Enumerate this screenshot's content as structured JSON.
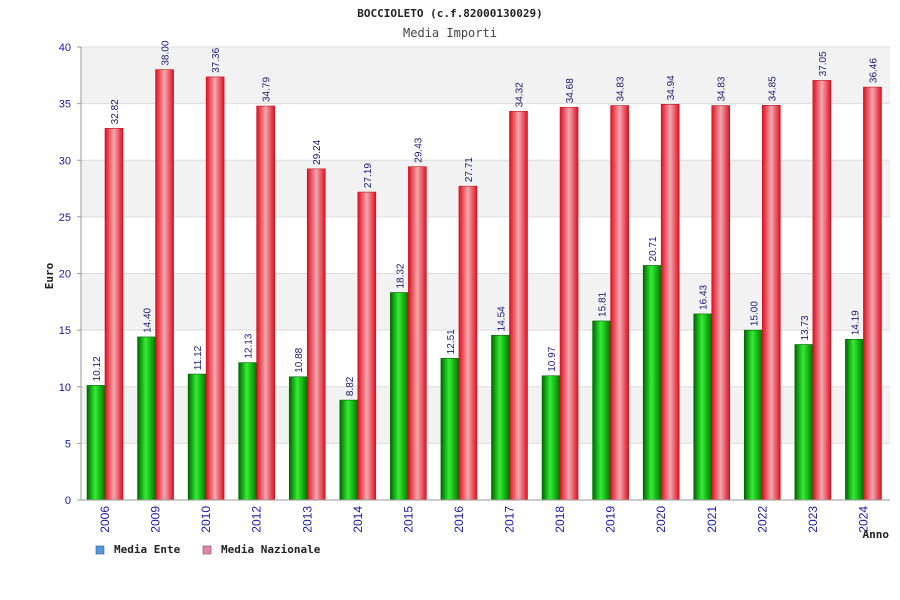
{
  "chart_data": {
    "type": "bar",
    "title": "BOCCIOLETO (c.f.82000130029)",
    "subtitle": "Media Importi",
    "xlabel": "Anno",
    "ylabel": "Euro",
    "ylim": [
      0,
      40
    ],
    "yticks": [
      0,
      5,
      10,
      15,
      20,
      25,
      30,
      35,
      40
    ],
    "grid": true,
    "legend_position": "bottom-left",
    "categories": [
      "2006",
      "2009",
      "2010",
      "2012",
      "2013",
      "2014",
      "2015",
      "2016",
      "2017",
      "2018",
      "2019",
      "2020",
      "2021",
      "2022",
      "2023",
      "2024"
    ],
    "series": [
      {
        "name": "Media Ente",
        "color": "#00aa00",
        "legend_color": "#5599dd",
        "values": [
          10.12,
          14.4,
          11.12,
          12.13,
          10.88,
          8.82,
          18.32,
          12.51,
          14.54,
          10.97,
          15.81,
          20.71,
          16.43,
          15.0,
          13.73,
          14.19
        ],
        "labels": [
          "10.12",
          "14.40",
          "11.12",
          "12.13",
          "10.88",
          "8.82",
          "18.32",
          "12.51",
          "14.54",
          "10.97",
          "15.81",
          "20.71",
          "16.43",
          "15.00",
          "13.73",
          "14.19"
        ]
      },
      {
        "name": "Media Nazionale",
        "color": "#ee1c2c",
        "legend_color": "#dd88aa",
        "values": [
          32.82,
          38.0,
          37.36,
          34.79,
          29.24,
          27.19,
          29.43,
          27.71,
          34.32,
          34.68,
          34.83,
          34.94,
          34.83,
          34.85,
          37.05,
          36.46
        ],
        "labels": [
          "32.82",
          "38.00",
          "37.36",
          "34.79",
          "29.24",
          "27.19",
          "29.43",
          "27.71",
          "34.32",
          "34.68",
          "34.83",
          "34.94",
          "34.83",
          "34.85",
          "37.05",
          "36.46"
        ]
      }
    ]
  }
}
